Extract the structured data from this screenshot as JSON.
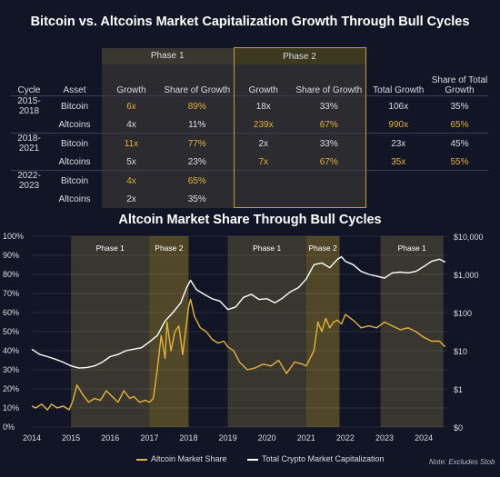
{
  "title": "Bitcoin vs. Altcoins Market Capitalization Growth Through Bull Cycles",
  "table": {
    "phase1": "Phase 1",
    "phase2": "Phase 2",
    "headers": [
      "Cycle",
      "Asset",
      "Growth",
      "Share of Growth",
      "Growth",
      "Share of Growth",
      "Total Growth",
      "Share of Total Growth"
    ],
    "rows": [
      {
        "cycle": "2015-2018",
        "asset": "Bitcoin",
        "p1g": "6x",
        "p1s": "89%",
        "p2g": "18x",
        "p2s": "33%",
        "tg": "106x",
        "ts": "35%",
        "gold": [
          true,
          true,
          false,
          false,
          false,
          false
        ]
      },
      {
        "cycle": "",
        "asset": "Altcoins",
        "p1g": "4x",
        "p1s": "11%",
        "p2g": "239x",
        "p2s": "67%",
        "tg": "990x",
        "ts": "65%",
        "gold": [
          false,
          false,
          true,
          true,
          true,
          true
        ]
      },
      {
        "cycle": "2018-2021",
        "asset": "Bitcoin",
        "p1g": "11x",
        "p1s": "77%",
        "p2g": "2x",
        "p2s": "33%",
        "tg": "23x",
        "ts": "45%",
        "gold": [
          true,
          true,
          false,
          false,
          false,
          false
        ]
      },
      {
        "cycle": "",
        "asset": "Altcoins",
        "p1g": "5x",
        "p1s": "23%",
        "p2g": "7x",
        "p2s": "67%",
        "tg": "35x",
        "ts": "55%",
        "gold": [
          false,
          false,
          true,
          true,
          true,
          true
        ]
      },
      {
        "cycle": "2022-2023",
        "asset": "Bitcoin",
        "p1g": "4x",
        "p1s": "65%",
        "p2g": "",
        "p2s": "",
        "tg": "",
        "ts": "",
        "gold": [
          true,
          true,
          false,
          false,
          false,
          false
        ]
      },
      {
        "cycle": "",
        "asset": "Altcoins",
        "p1g": "2x",
        "p1s": "35%",
        "p2g": "",
        "p2s": "",
        "tg": "",
        "ts": "",
        "gold": [
          false,
          false,
          false,
          false,
          false,
          false
        ]
      }
    ]
  },
  "chart_title": "Altcoin Market Share Through Bull Cycles",
  "legend": {
    "altcoin": "Altcoin Market Share",
    "total": "Total Crypto Market Capitalization"
  },
  "note": "Note: Excludes Stob",
  "colors": {
    "altcoin": "#e3b23c",
    "total": "#ffffff",
    "phase_band": "#4a4434",
    "phase2_band": "#6b5c2a"
  },
  "chart_data": {
    "type": "line",
    "title": "Altcoin Market Share Through Bull Cycles",
    "x_ticks": [
      "2014",
      "2015",
      "2016",
      "2017",
      "2018",
      "2019",
      "2020",
      "2021",
      "2022",
      "2023",
      "2024"
    ],
    "xlim": [
      2014,
      2024.6
    ],
    "y_left_ticks": [
      "0%",
      "10%",
      "20%",
      "30%",
      "40%",
      "50%",
      "60%",
      "70%",
      "80%",
      "90%",
      "100%"
    ],
    "ylim_left": [
      0,
      100
    ],
    "y_right_ticks": [
      "$0",
      "$1",
      "$10",
      "$100",
      "$1,000",
      "$10,000"
    ],
    "y_right_scale": "log",
    "phases": [
      {
        "label": "Phase 1",
        "start": 2015.0,
        "end": 2017.0,
        "kind": "phase1"
      },
      {
        "label": "Phase 2",
        "start": 2017.0,
        "end": 2018.0,
        "kind": "phase2"
      },
      {
        "label": "Phase 1",
        "start": 2019.0,
        "end": 2021.0,
        "kind": "phase1"
      },
      {
        "label": "Phase 2",
        "start": 2021.0,
        "end": 2021.85,
        "kind": "phase2"
      },
      {
        "label": "Phase 1",
        "start": 2022.9,
        "end": 2024.5,
        "kind": "phase1"
      }
    ],
    "series": [
      {
        "name": "Altcoin Market Share",
        "axis": "left",
        "x": [
          2014.0,
          2014.1,
          2014.25,
          2014.4,
          2014.5,
          2014.65,
          2014.8,
          2014.95,
          2015.05,
          2015.15,
          2015.3,
          2015.45,
          2015.6,
          2015.75,
          2015.9,
          2016.05,
          2016.2,
          2016.35,
          2016.5,
          2016.6,
          2016.75,
          2016.9,
          2017.0,
          2017.1,
          2017.2,
          2017.3,
          2017.4,
          2017.45,
          2017.55,
          2017.65,
          2017.75,
          2017.85,
          2017.95,
          2018.0,
          2018.05,
          2018.15,
          2018.3,
          2018.45,
          2018.6,
          2018.75,
          2018.9,
          2019.0,
          2019.15,
          2019.3,
          2019.5,
          2019.7,
          2019.9,
          2020.1,
          2020.3,
          2020.5,
          2020.7,
          2020.9,
          2021.0,
          2021.1,
          2021.2,
          2021.3,
          2021.4,
          2021.5,
          2021.6,
          2021.7,
          2021.8,
          2021.9,
          2022.0,
          2022.2,
          2022.4,
          2022.6,
          2022.8,
          2023.0,
          2023.2,
          2023.4,
          2023.6,
          2023.8,
          2024.0,
          2024.2,
          2024.4,
          2024.55
        ],
        "y": [
          11,
          10,
          12,
          9,
          12,
          10,
          11,
          9,
          14,
          22,
          17,
          13,
          15,
          14,
          19,
          16,
          13,
          19,
          15,
          16,
          13,
          14,
          13,
          15,
          30,
          48,
          36,
          55,
          40,
          50,
          53,
          38,
          55,
          63,
          67,
          58,
          52,
          50,
          46,
          44,
          45,
          42,
          40,
          34,
          30,
          31,
          33,
          32,
          35,
          28,
          34,
          33,
          32,
          36,
          40,
          55,
          50,
          57,
          52,
          55,
          56,
          54,
          59,
          56,
          52,
          53,
          52,
          55,
          53,
          51,
          52,
          50,
          47,
          45,
          45,
          42
        ]
      },
      {
        "name": "Total Crypto Market Capitalization",
        "axis": "right",
        "x": [
          2014.0,
          2014.2,
          2014.4,
          2014.6,
          2014.8,
          2015.0,
          2015.2,
          2015.4,
          2015.6,
          2015.8,
          2016.0,
          2016.2,
          2016.4,
          2016.6,
          2016.8,
          2017.0,
          2017.2,
          2017.4,
          2017.6,
          2017.8,
          2017.95,
          2018.05,
          2018.2,
          2018.4,
          2018.6,
          2018.8,
          2019.0,
          2019.2,
          2019.4,
          2019.6,
          2019.8,
          2020.0,
          2020.2,
          2020.4,
          2020.6,
          2020.8,
          2021.0,
          2021.2,
          2021.4,
          2021.6,
          2021.8,
          2021.9,
          2022.0,
          2022.2,
          2022.4,
          2022.6,
          2022.8,
          2023.0,
          2023.2,
          2023.4,
          2023.6,
          2023.8,
          2024.0,
          2024.2,
          2024.4,
          2024.55
        ],
        "y": [
          11,
          8,
          7,
          6,
          5,
          4,
          3.5,
          3.6,
          4,
          5,
          7,
          8,
          10,
          11,
          12,
          17,
          25,
          60,
          100,
          180,
          450,
          700,
          400,
          300,
          230,
          200,
          120,
          140,
          250,
          300,
          220,
          230,
          180,
          240,
          350,
          450,
          750,
          1800,
          2000,
          1500,
          2500,
          2900,
          2200,
          1800,
          1200,
          1000,
          900,
          800,
          1100,
          1150,
          1100,
          1200,
          1600,
          2200,
          2500,
          2100
        ]
      }
    ]
  }
}
